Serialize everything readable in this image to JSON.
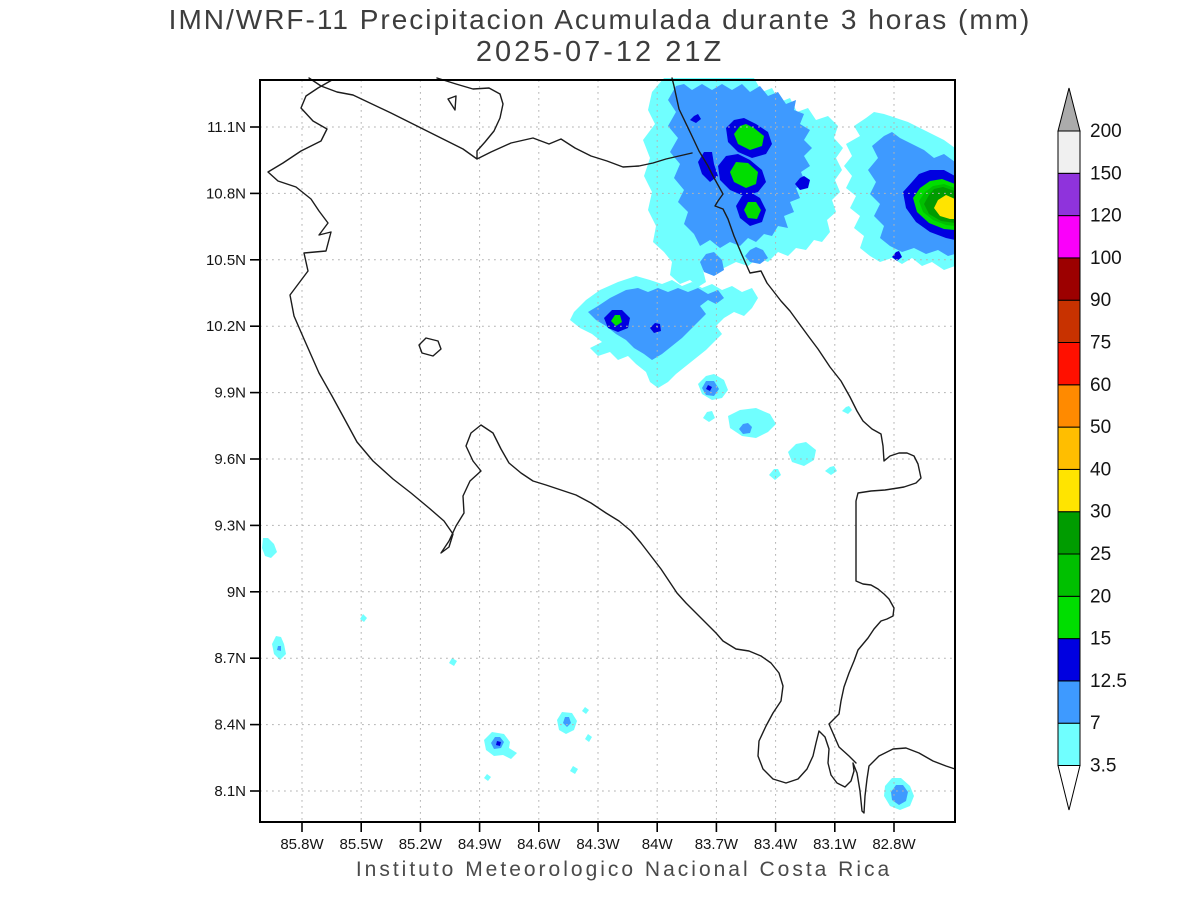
{
  "title": {
    "line1": "IMN/WRF-11 Precipitacion Acumulada durante 3 horas (mm)",
    "line2": "2025-07-12 21Z"
  },
  "footer": {
    "caption": "Instituto Meteorologico Nacional Costa Rica"
  },
  "axes": {
    "lat_tick_labels": [
      "11.1N",
      "10.8N",
      "10.5N",
      "10.2N",
      "9.9N",
      "9.6N",
      "9.3N",
      "9N",
      "8.7N",
      "8.4N",
      "8.1N"
    ],
    "lon_tick_labels": [
      "85.8W",
      "85.5W",
      "85.2W",
      "84.9W",
      "84.6W",
      "84.3W",
      "84W",
      "83.7W",
      "83.4W",
      "83.1W",
      "82.8W"
    ]
  },
  "colorbar": {
    "unit": "mm",
    "values": [
      3.5,
      7,
      12.5,
      15,
      20,
      25,
      30,
      40,
      50,
      60,
      75,
      90,
      100,
      120,
      150,
      200
    ],
    "band_colors": [
      "#70FFFF",
      "#3E9AFF",
      "#0000E0",
      "#00DE00",
      "#00C000",
      "#009C00",
      "#FFE400",
      "#FFBE00",
      "#FF8A00",
      "#FF1000",
      "#C83200",
      "#9C0000",
      "#FA00FA",
      "#8F33DC",
      "#F0F0F0"
    ],
    "over_color": "#ABABAB",
    "under_color": "#FFFFFF"
  },
  "map": {
    "region": "Costa Rica",
    "features": [
      {
        "name": "northern-caribbean-storm-cluster",
        "approx_location": "83.5W 10.9N",
        "max_band_mm": "15-20"
      },
      {
        "name": "eastern-caribbean-coastal-cell",
        "approx_location": "82.5W 10.75N",
        "max_band_mm": "30-40"
      },
      {
        "name": "central-highlands-cluster",
        "approx_location": "84.5W 10.2N",
        "max_band_mm": "15-20"
      },
      {
        "name": "scattered-south-pacific-cells",
        "approx_location": "84.7W 8.35N",
        "max_band_mm": "12.5-15"
      }
    ]
  }
}
